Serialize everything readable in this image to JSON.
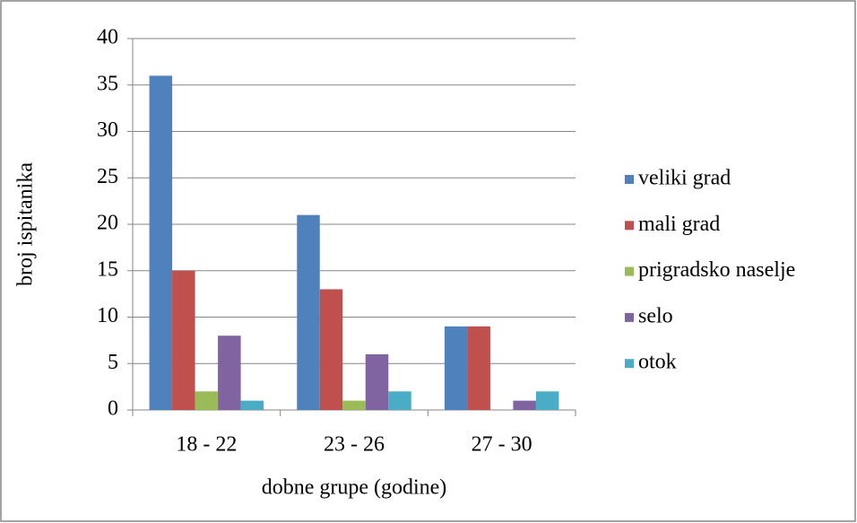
{
  "chart_data": {
    "type": "bar",
    "categories": [
      "18 - 22",
      "23 - 26",
      "27 - 30"
    ],
    "series": [
      {
        "name": "veliki grad",
        "color": "#4f81bd",
        "values": [
          36,
          21,
          9
        ]
      },
      {
        "name": "mali grad",
        "color": "#c0504d",
        "values": [
          15,
          13,
          9
        ]
      },
      {
        "name": "prigradsko naselje",
        "color": "#9bbb59",
        "values": [
          2,
          1,
          0
        ]
      },
      {
        "name": "selo",
        "color": "#8064a2",
        "values": [
          8,
          6,
          1
        ]
      },
      {
        "name": "otok",
        "color": "#4bacc6",
        "values": [
          1,
          2,
          2
        ]
      }
    ],
    "ylim": [
      0,
      40
    ],
    "yticks": [
      0,
      5,
      10,
      15,
      20,
      25,
      30,
      35,
      40
    ],
    "grid": true,
    "xlabel": "dobne grupe (godine)",
    "ylabel": "broj ispitanika",
    "legend": "right"
  }
}
